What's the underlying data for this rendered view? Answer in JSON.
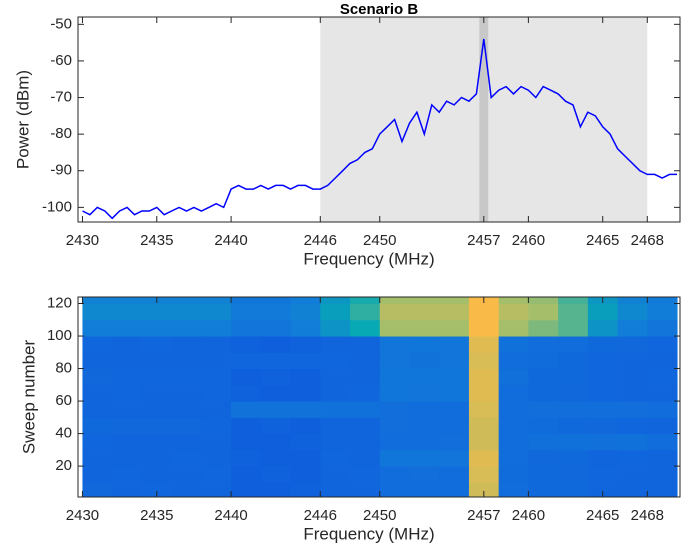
{
  "chart_data": [
    {
      "type": "line",
      "title": "Scenario B",
      "xlabel": "Frequency (MHz)",
      "ylabel": "Power (dBm)",
      "x": [
        2430,
        2430.5,
        2431,
        2431.5,
        2432,
        2432.5,
        2433,
        2433.5,
        2434,
        2434.5,
        2435,
        2435.5,
        2436,
        2436.5,
        2437,
        2437.5,
        2438,
        2438.5,
        2439,
        2439.5,
        2440,
        2440.5,
        2441,
        2441.5,
        2442,
        2442.5,
        2443,
        2443.5,
        2444,
        2444.5,
        2445,
        2445.5,
        2446,
        2446.5,
        2447,
        2447.5,
        2448,
        2448.5,
        2449,
        2449.5,
        2450,
        2450.5,
        2451,
        2451.5,
        2452,
        2452.5,
        2453,
        2453.5,
        2454,
        2454.5,
        2455,
        2455.5,
        2456,
        2456.5,
        2457,
        2457.5,
        2458,
        2458.5,
        2459,
        2459.5,
        2460,
        2460.5,
        2461,
        2461.5,
        2462,
        2462.5,
        2463,
        2463.5,
        2464,
        2464.5,
        2465,
        2465.5,
        2466,
        2466.5,
        2467,
        2467.5,
        2468,
        2468.5,
        2469,
        2469.5,
        2470
      ],
      "values": [
        -101,
        -102,
        -100,
        -101,
        -103,
        -101,
        -100,
        -102,
        -101,
        -101,
        -100,
        -102,
        -101,
        -100,
        -101,
        -100,
        -101,
        -100,
        -99,
        -100,
        -95,
        -94,
        -95,
        -95,
        -94,
        -95,
        -94,
        -94,
        -95,
        -94,
        -94,
        -95,
        -95,
        -94,
        -92,
        -90,
        -88,
        -87,
        -85,
        -84,
        -80,
        -78,
        -76,
        -82,
        -77,
        -74,
        -80,
        -72,
        -74,
        -71,
        -72,
        -70,
        -71,
        -69,
        -54,
        -70,
        -68,
        -67,
        -69,
        -67,
        -68,
        -70,
        -67,
        -68,
        -69,
        -71,
        -72,
        -78,
        -74,
        -75,
        -78,
        -80,
        -84,
        -86,
        -88,
        -90,
        -91,
        -91,
        -92,
        -91,
        -91
      ],
      "color": "#0000ff",
      "xlim": [
        2429.7,
        2470.2
      ],
      "ylim": [
        -104,
        -48
      ],
      "xticks": [
        2430,
        2435,
        2440,
        2446,
        2450,
        2457,
        2460,
        2465,
        2468
      ],
      "yticks": [
        -100,
        -90,
        -80,
        -70,
        -60,
        -50
      ],
      "shaded_regions": [
        {
          "xlim": [
            2446,
            2468
          ],
          "color": "#e6e6e6"
        },
        {
          "xlim": [
            2456.7,
            2457.3
          ],
          "color": "#c8c8c8"
        }
      ]
    },
    {
      "type": "heatmap",
      "xlabel": "Frequency (MHz)",
      "ylabel": "Sweep number",
      "colormap": "parula",
      "x_edges": [
        2430,
        2432,
        2434,
        2436,
        2438,
        2440,
        2442,
        2444,
        2446,
        2448,
        2450,
        2452,
        2454,
        2456,
        2458,
        2460,
        2462,
        2464,
        2466,
        2468,
        2470
      ],
      "y_edges": [
        1,
        10,
        20,
        30,
        40,
        50,
        60,
        70,
        80,
        90,
        100,
        110,
        120,
        124
      ],
      "z": [
        [
          0.27,
          0.25,
          0.26,
          0.25,
          0.25,
          0.22,
          0.22,
          0.23,
          0.25,
          0.25,
          0.3,
          0.3,
          0.3,
          0.85,
          0.3,
          0.28,
          0.28,
          0.25,
          0.25,
          0.25
        ],
        [
          0.25,
          0.26,
          0.25,
          0.25,
          0.26,
          0.22,
          0.23,
          0.22,
          0.25,
          0.26,
          0.3,
          0.31,
          0.3,
          0.86,
          0.29,
          0.28,
          0.27,
          0.26,
          0.25,
          0.25
        ],
        [
          0.25,
          0.25,
          0.25,
          0.26,
          0.25,
          0.23,
          0.22,
          0.22,
          0.26,
          0.25,
          0.36,
          0.36,
          0.35,
          0.87,
          0.3,
          0.27,
          0.28,
          0.25,
          0.26,
          0.25
        ],
        [
          0.26,
          0.25,
          0.25,
          0.25,
          0.25,
          0.22,
          0.22,
          0.23,
          0.25,
          0.25,
          0.3,
          0.3,
          0.31,
          0.85,
          0.3,
          0.32,
          0.33,
          0.32,
          0.33,
          0.3
        ],
        [
          0.28,
          0.27,
          0.27,
          0.27,
          0.26,
          0.22,
          0.23,
          0.22,
          0.25,
          0.25,
          0.31,
          0.3,
          0.3,
          0.85,
          0.3,
          0.29,
          0.28,
          0.27,
          0.26,
          0.25
        ],
        [
          0.25,
          0.25,
          0.25,
          0.25,
          0.25,
          0.34,
          0.34,
          0.34,
          0.33,
          0.33,
          0.31,
          0.3,
          0.3,
          0.86,
          0.3,
          0.31,
          0.31,
          0.31,
          0.31,
          0.3
        ],
        [
          0.25,
          0.26,
          0.25,
          0.25,
          0.26,
          0.23,
          0.22,
          0.22,
          0.25,
          0.26,
          0.36,
          0.35,
          0.36,
          0.87,
          0.3,
          0.28,
          0.27,
          0.26,
          0.25,
          0.25
        ],
        [
          0.27,
          0.26,
          0.26,
          0.26,
          0.26,
          0.22,
          0.23,
          0.22,
          0.25,
          0.25,
          0.36,
          0.36,
          0.36,
          0.87,
          0.32,
          0.28,
          0.28,
          0.26,
          0.25,
          0.26
        ],
        [
          0.25,
          0.25,
          0.25,
          0.25,
          0.25,
          0.26,
          0.26,
          0.26,
          0.26,
          0.25,
          0.35,
          0.34,
          0.35,
          0.86,
          0.3,
          0.29,
          0.28,
          0.26,
          0.25,
          0.25
        ],
        [
          0.26,
          0.25,
          0.26,
          0.25,
          0.25,
          0.23,
          0.22,
          0.23,
          0.25,
          0.25,
          0.35,
          0.36,
          0.35,
          0.87,
          0.33,
          0.3,
          0.3,
          0.28,
          0.27,
          0.26
        ],
        [
          0.4,
          0.4,
          0.4,
          0.4,
          0.4,
          0.35,
          0.35,
          0.4,
          0.5,
          0.6,
          0.8,
          0.8,
          0.8,
          0.9,
          0.8,
          0.75,
          0.7,
          0.5,
          0.4,
          0.35
        ],
        [
          0.45,
          0.45,
          0.45,
          0.45,
          0.45,
          0.38,
          0.38,
          0.42,
          0.55,
          0.65,
          0.82,
          0.82,
          0.82,
          0.9,
          0.82,
          0.8,
          0.7,
          0.55,
          0.45,
          0.4
        ],
        [
          0.42,
          0.42,
          0.42,
          0.42,
          0.42,
          0.36,
          0.36,
          0.4,
          0.52,
          0.62,
          0.8,
          0.8,
          0.8,
          0.9,
          0.8,
          0.78,
          0.68,
          0.52,
          0.42,
          0.38
        ]
      ],
      "xlim": [
        2429.7,
        2470.2
      ],
      "ylim": [
        1,
        124
      ],
      "xticks": [
        2430,
        2435,
        2440,
        2446,
        2450,
        2457,
        2460,
        2465,
        2468
      ],
      "yticks": [
        20,
        40,
        60,
        80,
        100,
        120
      ]
    }
  ]
}
